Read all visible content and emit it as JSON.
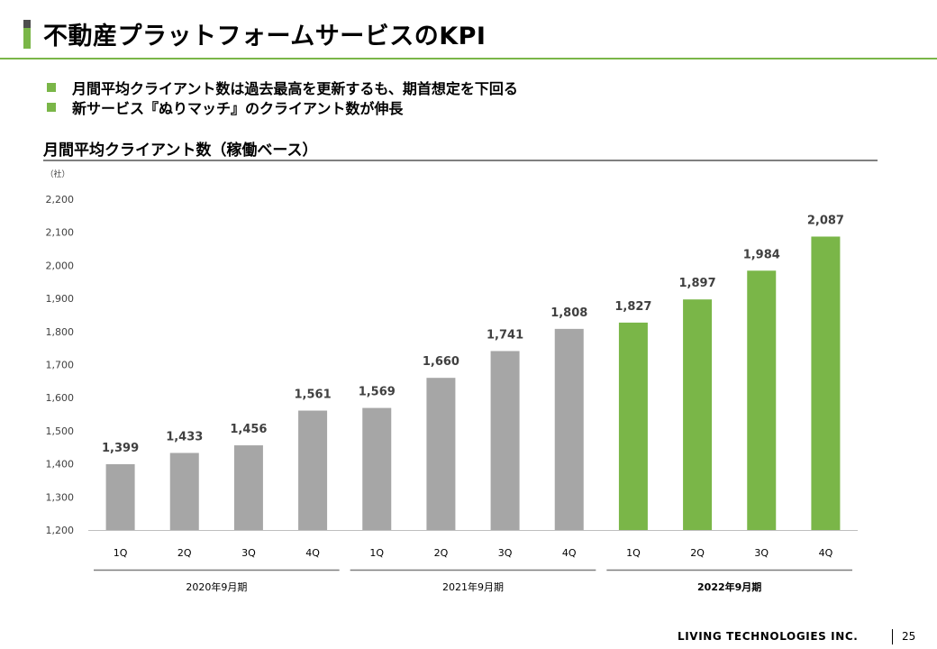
{
  "header": {
    "title": "不動産プラットフォームサービスのKPI"
  },
  "bullets": [
    "月間平均クライアント数は過去最高を更新するも、期首想定を下回る",
    "新サービス『ぬりマッチ』のクライアント数が伸長"
  ],
  "chart_heading": "月間平均クライアント数（稼働ベース）",
  "chart_data": {
    "type": "bar",
    "unit_label": "（社）",
    "categories": [
      "1Q",
      "2Q",
      "3Q",
      "4Q",
      "1Q",
      "2Q",
      "3Q",
      "4Q",
      "1Q",
      "2Q",
      "3Q",
      "4Q"
    ],
    "values": [
      1399,
      1433,
      1456,
      1561,
      1569,
      1660,
      1741,
      1808,
      1827,
      1897,
      1984,
      2087
    ],
    "data_labels": [
      "1,399",
      "1,433",
      "1,456",
      "1,561",
      "1,569",
      "1,660",
      "1,741",
      "1,808",
      "1,827",
      "1,897",
      "1,984",
      "2,087"
    ],
    "ylim": [
      1200,
      2200
    ],
    "yticks": [
      1200,
      1300,
      1400,
      1500,
      1600,
      1700,
      1800,
      1900,
      2000,
      2100,
      2200
    ],
    "ytick_labels": [
      "1,200",
      "1,300",
      "1,400",
      "1,500",
      "1,600",
      "1,700",
      "1,800",
      "1,900",
      "2,000",
      "2,100",
      "2,200"
    ],
    "groups": [
      {
        "label": "2020年9月期",
        "bold": false,
        "start": 0,
        "end": 3
      },
      {
        "label": "2021年9月期",
        "bold": false,
        "start": 4,
        "end": 7
      },
      {
        "label": "2022年9月期",
        "bold": true,
        "start": 8,
        "end": 11
      }
    ],
    "bar_colors": [
      "#a6a6a6",
      "#a6a6a6",
      "#a6a6a6",
      "#a6a6a6",
      "#a6a6a6",
      "#a6a6a6",
      "#a6a6a6",
      "#a6a6a6",
      "#7ab648",
      "#7ab648",
      "#7ab648",
      "#7ab648"
    ],
    "grid": false,
    "legend": "none"
  },
  "footer": {
    "company": "LIVING TECHNOLOGIES INC.",
    "page_number": "25"
  },
  "colors": {
    "accent": "#7ab648",
    "bar_past": "#a6a6a6",
    "bar_current": "#7ab648"
  }
}
